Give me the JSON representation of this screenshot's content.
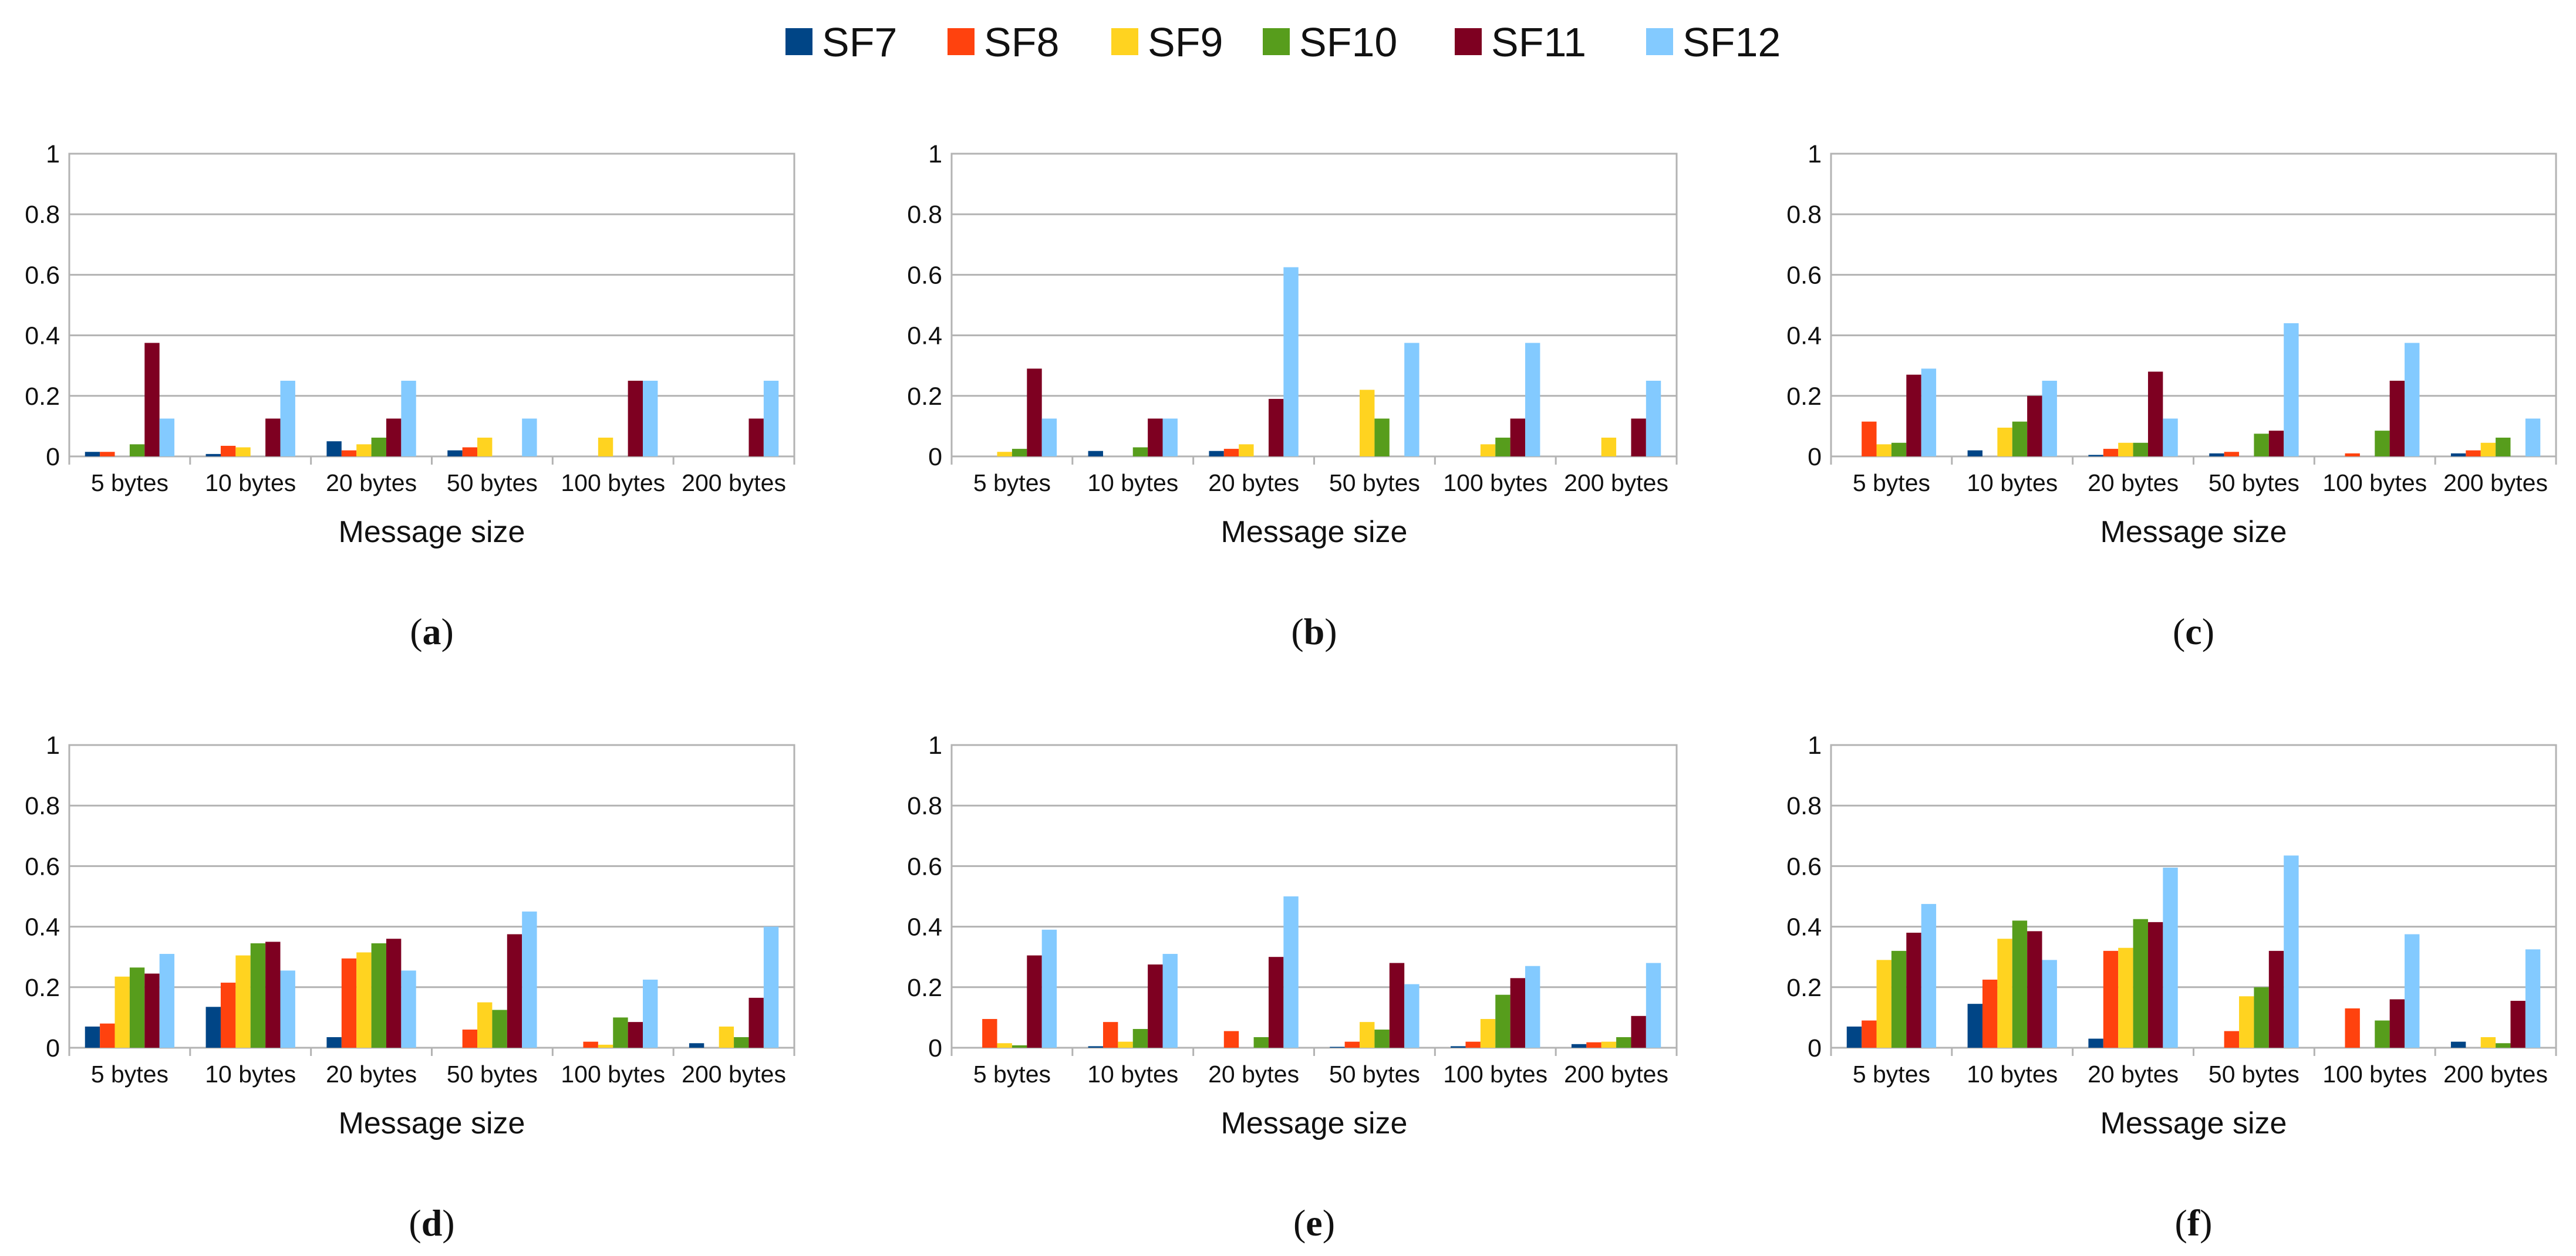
{
  "legend": [
    {
      "name": "SF7",
      "color": "#004586"
    },
    {
      "name": "SF8",
      "color": "#ff420e"
    },
    {
      "name": "SF9",
      "color": "#ffd320"
    },
    {
      "name": "SF10",
      "color": "#579d1c"
    },
    {
      "name": "SF11",
      "color": "#7e0021"
    },
    {
      "name": "SF12",
      "color": "#83caff"
    }
  ],
  "chart_data": [
    {
      "type": "bar",
      "caption": "(a)",
      "caption_letter": "a",
      "categories": [
        "5 bytes",
        "10 bytes",
        "20 bytes",
        "50 bytes",
        "100 bytes",
        "200 bytes"
      ],
      "xlabel": "Message size",
      "ylabel": "",
      "ylim": [
        0,
        1
      ],
      "yticks": [
        "0",
        "0.2",
        "0.4",
        "0.6",
        "0.8",
        "1"
      ],
      "series": [
        {
          "name": "SF7",
          "values": [
            0.015,
            0.008,
            0.05,
            0.02,
            0,
            0
          ]
        },
        {
          "name": "SF8",
          "values": [
            0.015,
            0.035,
            0.02,
            0.03,
            0,
            0
          ]
        },
        {
          "name": "SF9",
          "values": [
            0,
            0.03,
            0.04,
            0.062,
            0.062,
            0
          ]
        },
        {
          "name": "SF10",
          "values": [
            0.04,
            0,
            0.062,
            0,
            0,
            0
          ]
        },
        {
          "name": "SF11",
          "values": [
            0.375,
            0.125,
            0.125,
            0,
            0.25,
            0.125
          ]
        },
        {
          "name": "SF12",
          "values": [
            0.125,
            0.25,
            0.25,
            0.125,
            0.25,
            0.25
          ]
        }
      ]
    },
    {
      "type": "bar",
      "caption": "(b)",
      "caption_letter": "b",
      "categories": [
        "5 bytes",
        "10 bytes",
        "20 bytes",
        "50 bytes",
        "100 bytes",
        "200 bytes"
      ],
      "xlabel": "Message size",
      "ylabel": "",
      "ylim": [
        0,
        1
      ],
      "yticks": [
        "0",
        "0.2",
        "0.4",
        "0.6",
        "0.8",
        "1"
      ],
      "series": [
        {
          "name": "SF7",
          "values": [
            0,
            0.018,
            0.018,
            0,
            0,
            0
          ]
        },
        {
          "name": "SF8",
          "values": [
            0,
            0,
            0.025,
            0,
            0,
            0
          ]
        },
        {
          "name": "SF9",
          "values": [
            0.015,
            0,
            0.04,
            0.22,
            0.04,
            0.062
          ]
        },
        {
          "name": "SF10",
          "values": [
            0.025,
            0.03,
            0,
            0.125,
            0.062,
            0
          ]
        },
        {
          "name": "SF11",
          "values": [
            0.29,
            0.125,
            0.19,
            0,
            0.125,
            0.125
          ]
        },
        {
          "name": "SF12",
          "values": [
            0.125,
            0.125,
            0.625,
            0.375,
            0.375,
            0.25
          ]
        }
      ]
    },
    {
      "type": "bar",
      "caption": "(c)",
      "caption_letter": "c",
      "categories": [
        "5 bytes",
        "10 bytes",
        "20 bytes",
        "50 bytes",
        "100 bytes",
        "200 bytes"
      ],
      "xlabel": "Message size",
      "ylabel": "",
      "ylim": [
        0,
        1
      ],
      "yticks": [
        "0",
        "0.2",
        "0.4",
        "0.6",
        "0.8",
        "1"
      ],
      "series": [
        {
          "name": "SF7",
          "values": [
            0,
            0.02,
            0.005,
            0.01,
            0,
            0.01
          ]
        },
        {
          "name": "SF8",
          "values": [
            0.115,
            0,
            0.025,
            0.015,
            0.01,
            0.02
          ]
        },
        {
          "name": "SF9",
          "values": [
            0.04,
            0.095,
            0.045,
            0,
            0,
            0.045
          ]
        },
        {
          "name": "SF10",
          "values": [
            0.045,
            0.115,
            0.045,
            0.075,
            0.085,
            0.062
          ]
        },
        {
          "name": "SF11",
          "values": [
            0.27,
            0.2,
            0.28,
            0.085,
            0.25,
            0
          ]
        },
        {
          "name": "SF12",
          "values": [
            0.29,
            0.25,
            0.125,
            0.44,
            0.375,
            0.125
          ]
        }
      ]
    },
    {
      "type": "bar",
      "caption": "(d)",
      "caption_letter": "d",
      "categories": [
        "5 bytes",
        "10 bytes",
        "20 bytes",
        "50 bytes",
        "100 bytes",
        "200 bytes"
      ],
      "xlabel": "Message size",
      "ylabel": "",
      "ylim": [
        0,
        1
      ],
      "yticks": [
        "0",
        "0.2",
        "0.4",
        "0.6",
        "0.8",
        "1"
      ],
      "series": [
        {
          "name": "SF7",
          "values": [
            0.07,
            0.135,
            0.035,
            0,
            0,
            0.015
          ]
        },
        {
          "name": "SF8",
          "values": [
            0.08,
            0.215,
            0.295,
            0.06,
            0.02,
            0
          ]
        },
        {
          "name": "SF9",
          "values": [
            0.235,
            0.305,
            0.315,
            0.15,
            0.01,
            0.07
          ]
        },
        {
          "name": "SF10",
          "values": [
            0.265,
            0.345,
            0.345,
            0.125,
            0.1,
            0.035
          ]
        },
        {
          "name": "SF11",
          "values": [
            0.245,
            0.35,
            0.36,
            0.375,
            0.085,
            0.165
          ]
        },
        {
          "name": "SF12",
          "values": [
            0.31,
            0.255,
            0.255,
            0.45,
            0.225,
            0.4
          ]
        }
      ]
    },
    {
      "type": "bar",
      "caption": "(e)",
      "caption_letter": "e",
      "categories": [
        "5 bytes",
        "10 bytes",
        "20 bytes",
        "50 bytes",
        "100 bytes",
        "200 bytes"
      ],
      "xlabel": "Message size",
      "ylabel": "",
      "ylim": [
        0,
        1
      ],
      "yticks": [
        "0",
        "0.2",
        "0.4",
        "0.6",
        "0.8",
        "1"
      ],
      "series": [
        {
          "name": "SF7",
          "values": [
            0,
            0.005,
            0,
            0.003,
            0.005,
            0.012
          ]
        },
        {
          "name": "SF8",
          "values": [
            0.095,
            0.085,
            0.055,
            0.02,
            0.02,
            0.018
          ]
        },
        {
          "name": "SF9",
          "values": [
            0.015,
            0.02,
            0,
            0.085,
            0.095,
            0.02
          ]
        },
        {
          "name": "SF10",
          "values": [
            0.008,
            0.062,
            0.035,
            0.06,
            0.175,
            0.035
          ]
        },
        {
          "name": "SF11",
          "values": [
            0.305,
            0.275,
            0.3,
            0.28,
            0.23,
            0.105
          ]
        },
        {
          "name": "SF12",
          "values": [
            0.39,
            0.31,
            0.5,
            0.21,
            0.27,
            0.28
          ]
        }
      ]
    },
    {
      "type": "bar",
      "caption": "(f)",
      "caption_letter": "f",
      "categories": [
        "5 bytes",
        "10 bytes",
        "20 bytes",
        "50 bytes",
        "100 bytes",
        "200 bytes"
      ],
      "xlabel": "Message size",
      "ylabel": "",
      "ylim": [
        0,
        1
      ],
      "yticks": [
        "0",
        "0.2",
        "0.4",
        "0.6",
        "0.8",
        "1"
      ],
      "series": [
        {
          "name": "SF7",
          "values": [
            0.07,
            0.145,
            0.03,
            0,
            0,
            0.02
          ]
        },
        {
          "name": "SF8",
          "values": [
            0.09,
            0.225,
            0.32,
            0.055,
            0.13,
            0
          ]
        },
        {
          "name": "SF9",
          "values": [
            0.29,
            0.36,
            0.33,
            0.17,
            0,
            0.035
          ]
        },
        {
          "name": "SF10",
          "values": [
            0.32,
            0.42,
            0.425,
            0.2,
            0.09,
            0.015
          ]
        },
        {
          "name": "SF11",
          "values": [
            0.38,
            0.385,
            0.415,
            0.32,
            0.16,
            0.155
          ]
        },
        {
          "name": "SF12",
          "values": [
            0.475,
            0.29,
            0.595,
            0.635,
            0.375,
            0.325
          ]
        }
      ]
    }
  ]
}
